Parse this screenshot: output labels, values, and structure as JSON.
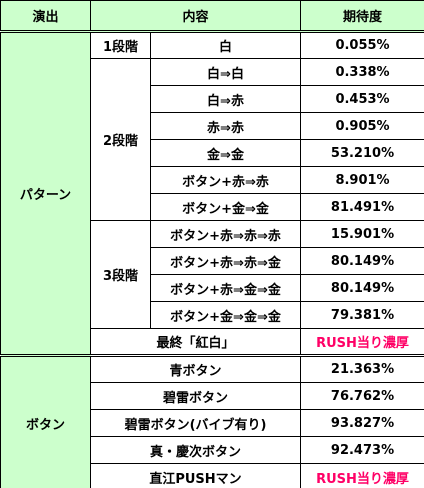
{
  "header": [
    "演出",
    "内容",
    "期待度"
  ],
  "highlight_color": "#ff0066",
  "sections": [
    {
      "name": "パターン",
      "items": [
        {
          "stage": "1段階",
          "rows": [
            {
              "content": "白",
              "value": "0.055%"
            }
          ]
        },
        {
          "stage": "2段階",
          "rows": [
            {
              "content": "白⇒白",
              "value": "0.338%"
            },
            {
              "content": "白⇒赤",
              "value": "0.453%"
            },
            {
              "content": "赤⇒赤",
              "value": "0.905%"
            },
            {
              "content": "金⇒金",
              "value": "53.210%"
            },
            {
              "content": "ボタン+赤⇒赤",
              "value": "8.901%"
            },
            {
              "content": "ボタン+金⇒金",
              "value": "81.491%"
            }
          ]
        },
        {
          "stage": "3段階",
          "rows": [
            {
              "content": "ボタン+赤⇒赤⇒赤",
              "value": "15.901%"
            },
            {
              "content": "ボタン+赤⇒赤⇒金",
              "value": "80.149%"
            },
            {
              "content": "ボタン+赤⇒金⇒金",
              "value": "80.149%"
            },
            {
              "content": "ボタン+金⇒金⇒金",
              "value": "79.381%"
            }
          ]
        },
        {
          "content": "最終「紅白」",
          "value": "RUSH当り濃厚",
          "highlight": true
        }
      ]
    },
    {
      "name": "ボタン",
      "items": [
        {
          "content": "青ボタン",
          "value": "21.363%"
        },
        {
          "content": "碧雷ボタン",
          "value": "76.762%"
        },
        {
          "content": "碧雷ボタン(バイブ有り)",
          "value": "93.827%"
        },
        {
          "content": "真・慶次ボタン",
          "value": "92.473%"
        },
        {
          "content": "直江PUSHマン",
          "value": "RUSH当り濃厚",
          "highlight": true
        }
      ]
    }
  ]
}
